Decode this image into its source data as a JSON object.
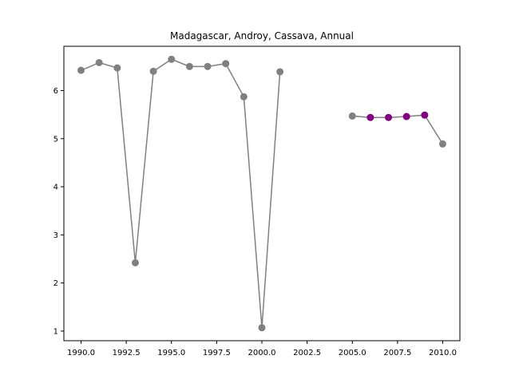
{
  "chart_data": {
    "type": "line",
    "title": "Madagascar, Androy, Cassava, Annual",
    "xlabel": "",
    "ylabel": "",
    "xlim": [
      1989.05,
      2010.95
    ],
    "ylim": [
      0.8,
      6.92
    ],
    "grid": false,
    "x_ticks": [
      1990.0,
      1992.5,
      1995.0,
      1997.5,
      2000.0,
      2002.5,
      2005.0,
      2007.5,
      2010.0
    ],
    "x_tick_labels": [
      "1990.0",
      "1992.5",
      "1995.0",
      "1997.5",
      "2000.0",
      "2002.5",
      "2005.0",
      "2007.5",
      "2010.0"
    ],
    "y_ticks": [
      1,
      2,
      3,
      4,
      5,
      6
    ],
    "y_tick_labels": [
      "1",
      "2",
      "3",
      "4",
      "5",
      "6"
    ],
    "line_color": "#808080",
    "highlight_color": "#800080",
    "segments": [
      {
        "points": [
          {
            "x": 1990,
            "y": 6.42,
            "highlight": false
          },
          {
            "x": 1991,
            "y": 6.58,
            "highlight": false
          },
          {
            "x": 1992,
            "y": 6.47,
            "highlight": false
          },
          {
            "x": 1993,
            "y": 2.42,
            "highlight": false
          },
          {
            "x": 1994,
            "y": 6.4,
            "highlight": false
          },
          {
            "x": 1995,
            "y": 6.65,
            "highlight": false
          },
          {
            "x": 1996,
            "y": 6.5,
            "highlight": false
          },
          {
            "x": 1997,
            "y": 6.5,
            "highlight": false
          },
          {
            "x": 1998,
            "y": 6.56,
            "highlight": false
          },
          {
            "x": 1999,
            "y": 5.87,
            "highlight": false
          },
          {
            "x": 2000,
            "y": 1.07,
            "highlight": false
          },
          {
            "x": 2001,
            "y": 6.39,
            "highlight": false
          }
        ]
      },
      {
        "points": [
          {
            "x": 2005,
            "y": 5.47,
            "highlight": false
          },
          {
            "x": 2006,
            "y": 5.44,
            "highlight": true
          },
          {
            "x": 2007,
            "y": 5.44,
            "highlight": true
          },
          {
            "x": 2008,
            "y": 5.46,
            "highlight": true
          },
          {
            "x": 2009,
            "y": 5.49,
            "highlight": true
          },
          {
            "x": 2010,
            "y": 4.89,
            "highlight": false
          }
        ]
      }
    ]
  }
}
